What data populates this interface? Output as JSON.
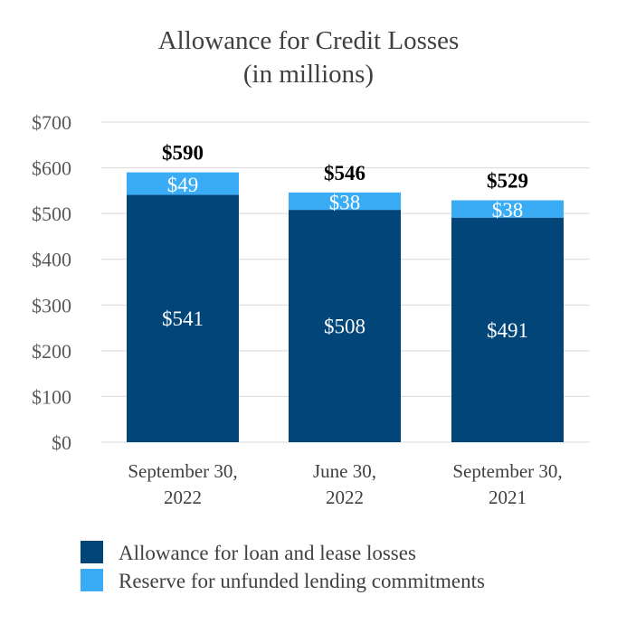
{
  "chart_data": {
    "type": "bar",
    "stacked": true,
    "title": [
      "Allowance for Credit Losses",
      "(in millions)"
    ],
    "categories": [
      [
        "September 30,",
        "2022"
      ],
      [
        "June 30,",
        "2022"
      ],
      [
        "September 30,",
        "2021"
      ]
    ],
    "series": [
      {
        "name": "Allowance for loan and lease losses",
        "color": "#024578",
        "values": [
          541,
          508,
          491
        ],
        "labels": [
          "$541",
          "$508",
          "$491"
        ]
      },
      {
        "name": "Reserve for unfunded lending commitments",
        "color": "#3aacf5",
        "values": [
          49,
          38,
          38
        ],
        "labels": [
          "$49",
          "$38",
          "$38"
        ]
      }
    ],
    "totals": [
      590,
      546,
      529
    ],
    "total_labels": [
      "$590",
      "$546",
      "$529"
    ],
    "ylim": [
      0,
      700
    ],
    "yticks": [
      0,
      100,
      200,
      300,
      400,
      500,
      600,
      700
    ],
    "ytick_labels": [
      "$0",
      "$100",
      "$200",
      "$300",
      "$400",
      "$500",
      "$600",
      "$700"
    ],
    "grid": true,
    "legend_position": "bottom-left",
    "xlabel": "",
    "ylabel": ""
  }
}
